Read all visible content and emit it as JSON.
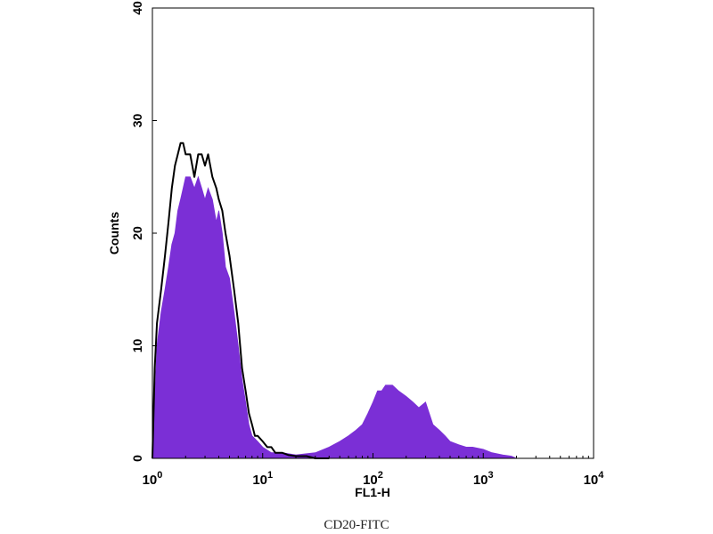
{
  "chart_data": {
    "type": "area",
    "xscale": "log",
    "xlim": [
      1,
      10000
    ],
    "ylim": [
      0,
      40
    ],
    "xlabel": "FL1-H",
    "ylabel": "Counts",
    "x_ticks": [
      {
        "base": "10",
        "exp": "0"
      },
      {
        "base": "10",
        "exp": "1"
      },
      {
        "base": "10",
        "exp": "2"
      },
      {
        "base": "10",
        "exp": "3"
      },
      {
        "base": "10",
        "exp": "4"
      }
    ],
    "y_ticks": [
      "0",
      "10",
      "20",
      "30",
      "40"
    ],
    "grid": false,
    "series": [
      {
        "style": "filled",
        "color": "#7b2fd6",
        "x": [
          1.0,
          1.1,
          1.2,
          1.3,
          1.4,
          1.5,
          1.6,
          1.7,
          1.8,
          1.9,
          2.0,
          2.2,
          2.4,
          2.6,
          2.8,
          3.0,
          3.2,
          3.5,
          3.8,
          4.0,
          4.3,
          4.6,
          5.0,
          5.5,
          6.0,
          6.5,
          7.0,
          7.5,
          8.0,
          9.0,
          10,
          12,
          15,
          20,
          30,
          40,
          50,
          60,
          70,
          80,
          90,
          100,
          110,
          120,
          130,
          150,
          170,
          200,
          230,
          260,
          300,
          350,
          400,
          450,
          500,
          600,
          700,
          800,
          1000,
          1200,
          1500,
          1800,
          2000,
          3000,
          5000,
          10000
        ],
        "y": [
          0,
          10,
          13,
          15,
          17,
          19,
          20,
          22,
          23,
          24,
          25,
          25,
          24,
          25,
          24,
          23,
          24,
          23,
          21,
          22,
          20,
          17,
          16,
          13,
          10,
          7,
          5,
          3,
          2,
          1.5,
          1,
          0.5,
          0.5,
          0.3,
          0.5,
          1,
          1.5,
          2,
          2.5,
          3,
          4,
          5,
          6,
          6,
          6.5,
          6.5,
          6,
          5.5,
          5,
          4.5,
          5,
          3,
          2.5,
          2,
          1.5,
          1.2,
          1,
          1,
          0.8,
          0.5,
          0.3,
          0.2,
          0,
          0,
          0,
          0
        ]
      },
      {
        "style": "line",
        "color": "#000000",
        "x": [
          1.0,
          1.05,
          1.1,
          1.2,
          1.3,
          1.4,
          1.5,
          1.6,
          1.7,
          1.8,
          1.9,
          2.0,
          2.2,
          2.4,
          2.6,
          2.8,
          3.0,
          3.2,
          3.5,
          3.8,
          4.0,
          4.3,
          4.6,
          5.0,
          5.5,
          6.0,
          6.5,
          7.0,
          7.5,
          8.0,
          8.5,
          9.0,
          10,
          11,
          12,
          13,
          15,
          17,
          20,
          25,
          30,
          35,
          40
        ],
        "y": [
          0,
          8,
          12,
          15,
          18,
          21,
          24,
          26,
          27,
          28,
          28,
          27,
          27,
          25,
          27,
          27,
          26,
          27,
          25,
          24,
          23,
          22,
          20,
          18,
          15,
          12,
          8,
          6,
          4,
          3,
          2,
          2,
          1.5,
          1,
          1,
          0.5,
          0.5,
          0.3,
          0.2,
          0.2,
          0,
          0,
          0
        ]
      }
    ]
  },
  "caption": "CD20-FITC"
}
